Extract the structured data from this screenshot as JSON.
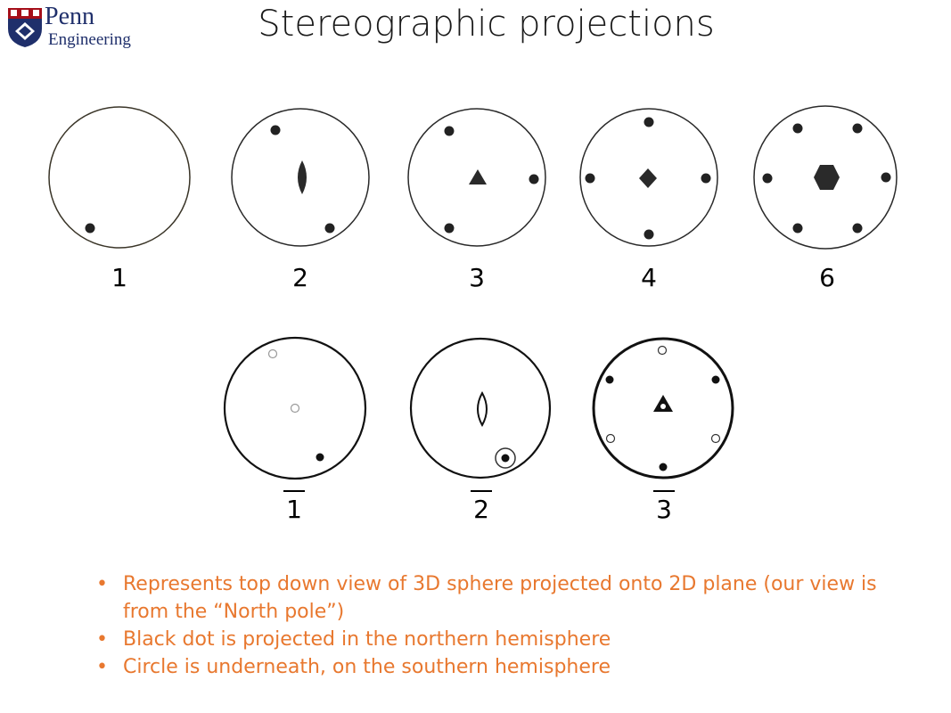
{
  "header": {
    "logo_text_line1": "Penn",
    "logo_text_line2": "Engineering",
    "title": "Stereographic projections"
  },
  "diagrams": {
    "top_row": [
      {
        "label": "1"
      },
      {
        "label": "2"
      },
      {
        "label": "3"
      },
      {
        "label": "4"
      },
      {
        "label": "6"
      }
    ],
    "bottom_row": [
      {
        "label": "1",
        "overline": true
      },
      {
        "label": "2",
        "overline": true
      },
      {
        "label": "3",
        "overline": true
      }
    ]
  },
  "bullets": [
    {
      "text": "Represents top down view of 3D sphere projected onto 2D plane (our view is from the “North pole”)"
    },
    {
      "text": "Black dot is projected in the northern hemisphere"
    },
    {
      "text": "Circle is underneath, on the southern hemisphere"
    }
  ],
  "colors": {
    "bullet_text": "#e8782f",
    "logo_blue": "#1f2f6b",
    "logo_red": "#a50f1a"
  }
}
